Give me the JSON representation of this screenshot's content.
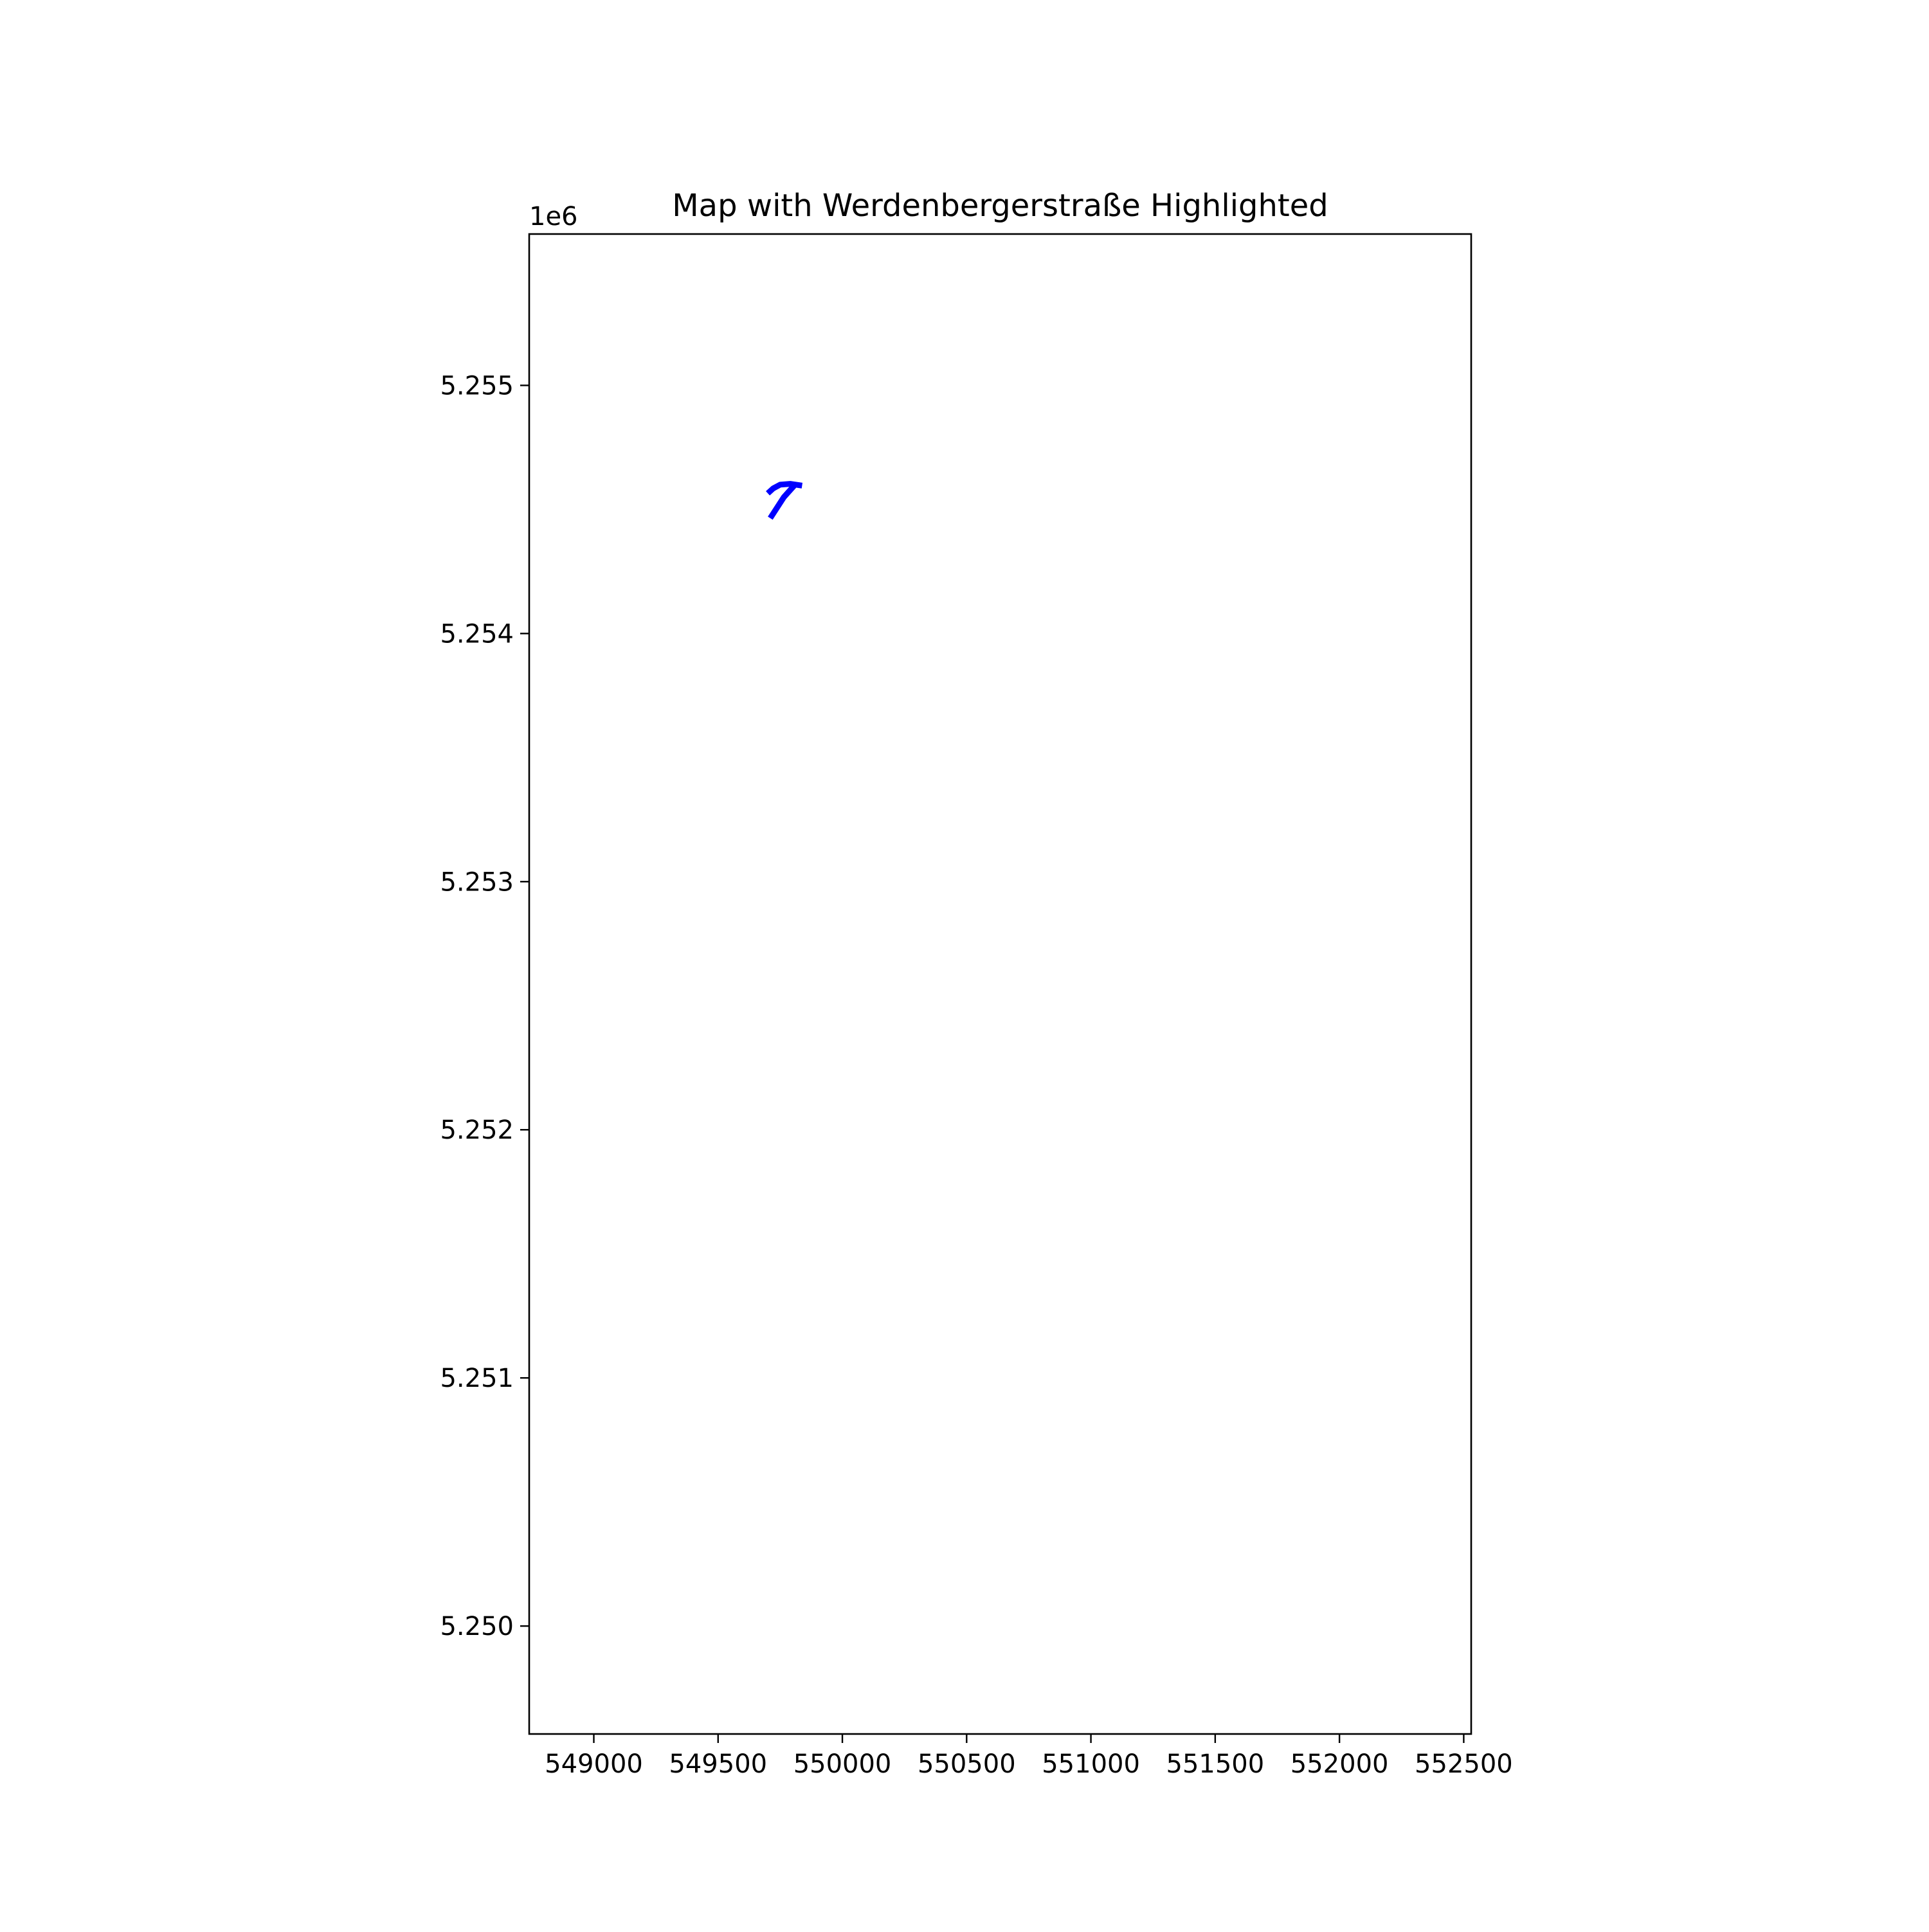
{
  "chart_data": {
    "type": "line",
    "title": "Map with Werdenbergerstraße Highlighted",
    "xlabel": "",
    "ylabel": "",
    "y_offset_label": "1e6",
    "xlim": [
      548740,
      552530
    ],
    "ylim": [
      5249565,
      5255610
    ],
    "xticks": [
      549000,
      549500,
      550000,
      550500,
      551000,
      551500,
      552000,
      552500
    ],
    "xtick_labels": [
      "549000",
      "549500",
      "550000",
      "550500",
      "551000",
      "551500",
      "552000",
      "552500"
    ],
    "yticks": [
      5250000,
      5251000,
      5252000,
      5253000,
      5254000,
      5255000
    ],
    "ytick_labels": [
      "5.250",
      "5.251",
      "5.252",
      "5.253",
      "5.254",
      "5.255"
    ],
    "grid": false,
    "series": [
      {
        "color": "#0000ff",
        "segments": [
          {
            "x": [
              549710,
              549765,
              549808
            ],
            "y": [
              5254465,
              5254550,
              5254598
            ]
          },
          {
            "x": [
              549700,
              549722,
              549750,
              549790,
              549838
            ],
            "y": [
              5254565,
              5254585,
              5254600,
              5254603,
              5254596
            ]
          }
        ]
      }
    ]
  }
}
